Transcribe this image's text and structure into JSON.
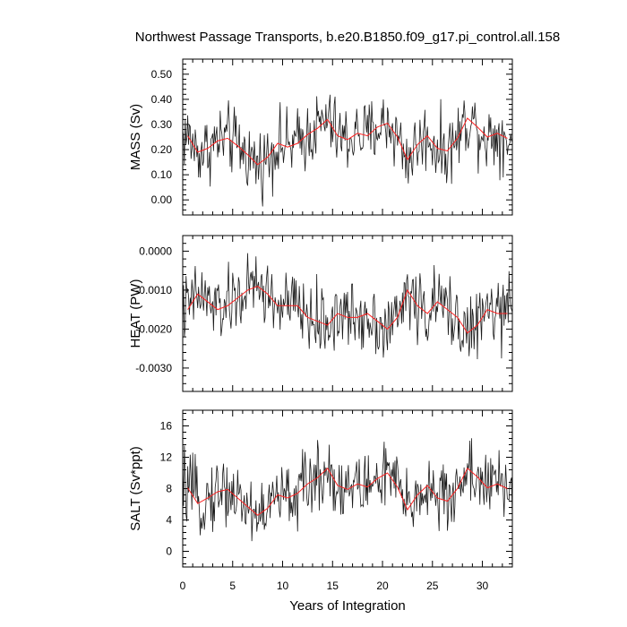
{
  "colors": {
    "raw_series": "#1a1a1a",
    "annual_series": "#ff2020",
    "frame": "#000000"
  },
  "chart_data": {
    "title": "Northwest Passage Transports, b.e20.B1850.f09_g17.pi_control.all.158",
    "xlabel": "Years of Integration",
    "xlim": [
      0,
      33
    ],
    "xticks": [
      0,
      5,
      10,
      15,
      20,
      25,
      30
    ],
    "xtick_labels": [
      "0",
      "5",
      "10",
      "15",
      "20",
      "25",
      "30"
    ],
    "panels": [
      {
        "type": "line",
        "ylabel": "MASS (Sv)",
        "ylim": [
          -0.06,
          0.56
        ],
        "yticks": [
          0.0,
          0.1,
          0.2,
          0.3,
          0.4,
          0.5
        ],
        "ytick_labels": [
          "0.00",
          "0.10",
          "0.20",
          "0.30",
          "0.40",
          "0.50"
        ],
        "annual_x": [
          0.5,
          1.5,
          2.5,
          3.5,
          4.5,
          5.5,
          6.5,
          7.5,
          8.5,
          9.5,
          10.5,
          11.5,
          12.5,
          13.5,
          14.5,
          15.5,
          16.5,
          17.5,
          18.5,
          19.5,
          20.5,
          21.5,
          22.5,
          23.5,
          24.5,
          25.5,
          26.5,
          27.5,
          28.5,
          29.5,
          30.5,
          31.5,
          32.5
        ],
        "annual_y": [
          0.255,
          0.19,
          0.205,
          0.235,
          0.245,
          0.215,
          0.18,
          0.14,
          0.17,
          0.225,
          0.21,
          0.225,
          0.26,
          0.285,
          0.32,
          0.255,
          0.24,
          0.265,
          0.255,
          0.29,
          0.305,
          0.25,
          0.16,
          0.22,
          0.255,
          0.205,
          0.195,
          0.245,
          0.325,
          0.29,
          0.25,
          0.265,
          0.245
        ]
      },
      {
        "type": "line",
        "ylabel": "HEAT (PW)",
        "ylim": [
          -0.0036,
          0.0004
        ],
        "yticks": [
          -0.003,
          -0.002,
          -0.001,
          0.0
        ],
        "ytick_labels": [
          "-0.0030",
          "-0.0020",
          "-0.0010",
          "0.0000"
        ],
        "annual_x": [
          0.5,
          1.5,
          2.5,
          3.5,
          4.5,
          5.5,
          6.5,
          7.5,
          8.5,
          9.5,
          10.5,
          11.5,
          12.5,
          13.5,
          14.5,
          15.5,
          16.5,
          17.5,
          18.5,
          19.5,
          20.5,
          21.5,
          22.5,
          23.5,
          24.5,
          25.5,
          26.5,
          27.5,
          28.5,
          29.5,
          30.5,
          31.5,
          32.5
        ],
        "annual_y": [
          -0.0015,
          -0.0011,
          -0.0013,
          -0.0015,
          -0.0014,
          -0.0012,
          -0.001,
          -0.0009,
          -0.0011,
          -0.0014,
          -0.0014,
          -0.0014,
          -0.0017,
          -0.0018,
          -0.0019,
          -0.0016,
          -0.0017,
          -0.0017,
          -0.0016,
          -0.0018,
          -0.002,
          -0.0017,
          -0.001,
          -0.0014,
          -0.0016,
          -0.0013,
          -0.0015,
          -0.0017,
          -0.0021,
          -0.0019,
          -0.0015,
          -0.0016,
          -0.0016
        ]
      },
      {
        "type": "line",
        "ylabel": "SALT (Sv*ppt)",
        "ylim": [
          -2.0,
          18.0
        ],
        "yticks": [
          0,
          4,
          8,
          12,
          16
        ],
        "ytick_labels": [
          "0",
          "4",
          "8",
          "12",
          "16"
        ],
        "annual_x": [
          0.5,
          1.5,
          2.5,
          3.5,
          4.5,
          5.5,
          6.5,
          7.5,
          8.5,
          9.5,
          10.5,
          11.5,
          12.5,
          13.5,
          14.5,
          15.5,
          16.5,
          17.5,
          18.5,
          19.5,
          20.5,
          21.5,
          22.5,
          23.5,
          24.5,
          25.5,
          26.5,
          27.5,
          28.5,
          29.5,
          30.5,
          31.5,
          32.5
        ],
        "annual_y": [
          8.1,
          6.1,
          6.8,
          7.6,
          7.9,
          6.8,
          5.7,
          4.6,
          5.5,
          7.2,
          6.8,
          7.4,
          8.6,
          9.4,
          10.6,
          8.4,
          7.9,
          8.6,
          8.2,
          9.3,
          10.0,
          8.2,
          5.3,
          7.2,
          8.4,
          6.8,
          6.4,
          8.0,
          10.6,
          9.5,
          8.1,
          8.6,
          8.0
        ]
      }
    ]
  }
}
